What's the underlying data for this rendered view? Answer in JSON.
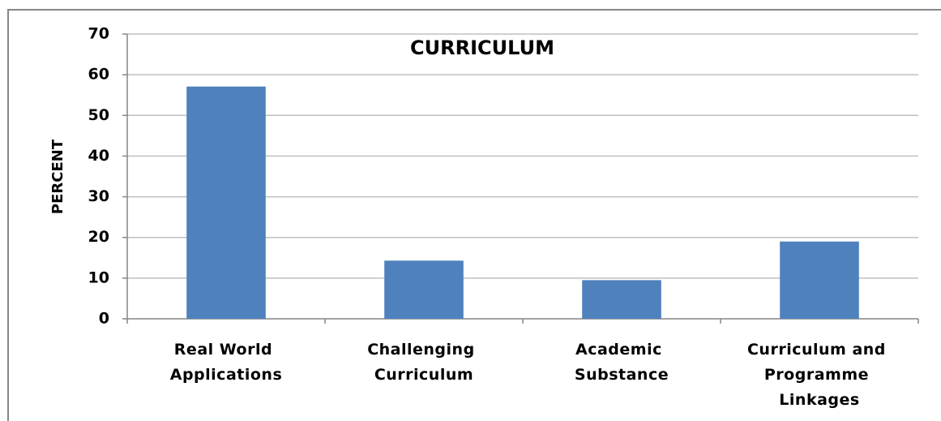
{
  "chart_data": {
    "type": "bar",
    "title": "CURRICULUM",
    "ylabel": "PERCENT",
    "categories": [
      "Real World Applications",
      "Challenging Curriculum",
      "Academic Substance",
      "Curriculum and Programme Linkages"
    ],
    "values": [
      57.1,
      14.3,
      9.5,
      19.0
    ],
    "color": "#4f81bd",
    "ylim": [
      0,
      70
    ],
    "yticks": [
      0,
      10,
      20,
      30,
      40,
      50,
      60,
      70
    ],
    "grid": true
  }
}
